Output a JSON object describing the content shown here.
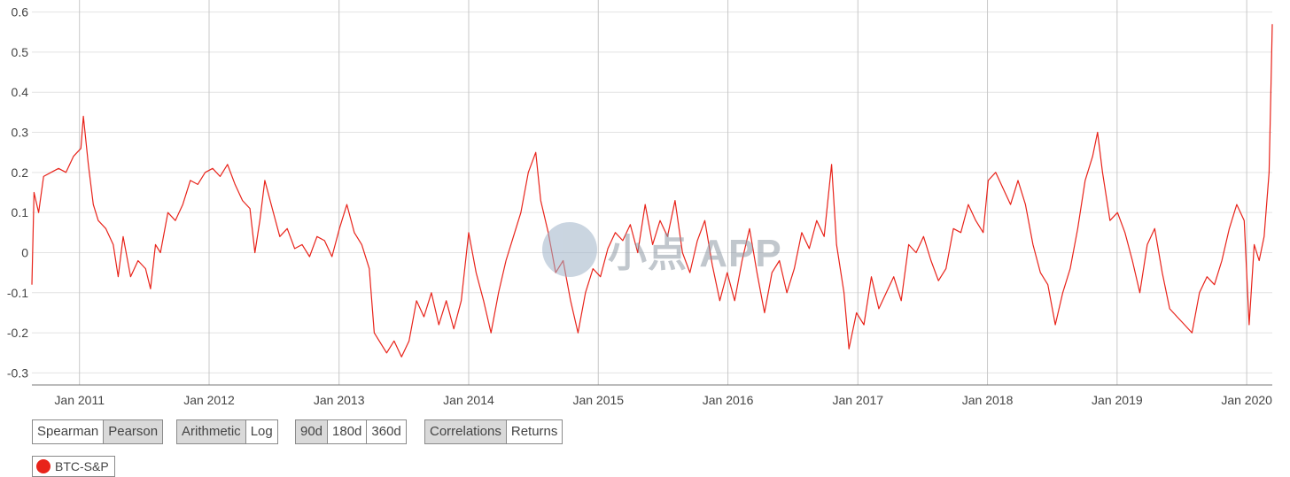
{
  "chart_data": {
    "type": "line",
    "ylim": [
      -0.33,
      0.63
    ],
    "yticks": [
      {
        "v": 0.6,
        "label": "0.6"
      },
      {
        "v": 0.5,
        "label": "0.5"
      },
      {
        "v": 0.4,
        "label": "0.4"
      },
      {
        "v": 0.3,
        "label": "0.3"
      },
      {
        "v": 0.2,
        "label": "0.2"
      },
      {
        "v": 0.1,
        "label": "0.1"
      },
      {
        "v": 0.0,
        "label": "0"
      },
      {
        "v": -0.1,
        "label": "-0.1"
      },
      {
        "v": -0.2,
        "label": "-0.2"
      },
      {
        "v": -0.3,
        "label": "-0.3"
      }
    ],
    "xlim": [
      "2010-08-20",
      "2020-03-13"
    ],
    "xticks": [
      {
        "date": "2011-01-01",
        "label": "Jan 2011"
      },
      {
        "date": "2012-01-01",
        "label": "Jan 2012"
      },
      {
        "date": "2013-01-01",
        "label": "Jan 2013"
      },
      {
        "date": "2014-01-01",
        "label": "Jan 2014"
      },
      {
        "date": "2015-01-01",
        "label": "Jan 2015"
      },
      {
        "date": "2016-01-01",
        "label": "Jan 2016"
      },
      {
        "date": "2017-01-01",
        "label": "Jan 2017"
      },
      {
        "date": "2018-01-01",
        "label": "Jan 2018"
      },
      {
        "date": "2019-01-01",
        "label": "Jan 2019"
      },
      {
        "date": "2020-01-01",
        "label": "Jan 2020"
      }
    ],
    "grid": true,
    "series": [
      {
        "name": "BTC-S&P",
        "color": "#e8231a",
        "points": [
          [
            "2010-08-20",
            -0.08
          ],
          [
            "2010-08-26",
            0.15
          ],
          [
            "2010-09-08",
            0.1
          ],
          [
            "2010-09-22",
            0.19
          ],
          [
            "2010-10-13",
            0.2
          ],
          [
            "2010-11-03",
            0.21
          ],
          [
            "2010-11-24",
            0.2
          ],
          [
            "2010-12-15",
            0.24
          ],
          [
            "2011-01-05",
            0.26
          ],
          [
            "2011-01-12",
            0.34
          ],
          [
            "2011-01-26",
            0.22
          ],
          [
            "2011-02-09",
            0.12
          ],
          [
            "2011-02-23",
            0.08
          ],
          [
            "2011-03-16",
            0.06
          ],
          [
            "2011-04-06",
            0.02
          ],
          [
            "2011-04-20",
            -0.06
          ],
          [
            "2011-05-04",
            0.04
          ],
          [
            "2011-05-25",
            -0.06
          ],
          [
            "2011-06-15",
            -0.02
          ],
          [
            "2011-07-06",
            -0.04
          ],
          [
            "2011-07-20",
            -0.09
          ],
          [
            "2011-08-03",
            0.02
          ],
          [
            "2011-08-17",
            0.0
          ],
          [
            "2011-09-07",
            0.1
          ],
          [
            "2011-09-28",
            0.08
          ],
          [
            "2011-10-19",
            0.12
          ],
          [
            "2011-11-09",
            0.18
          ],
          [
            "2011-11-30",
            0.17
          ],
          [
            "2011-12-21",
            0.2
          ],
          [
            "2012-01-11",
            0.21
          ],
          [
            "2012-02-01",
            0.19
          ],
          [
            "2012-02-22",
            0.22
          ],
          [
            "2012-03-14",
            0.17
          ],
          [
            "2012-04-04",
            0.13
          ],
          [
            "2012-04-25",
            0.11
          ],
          [
            "2012-05-09",
            -0.0
          ],
          [
            "2012-05-23",
            0.08
          ],
          [
            "2012-06-06",
            0.18
          ],
          [
            "2012-06-27",
            0.11
          ],
          [
            "2012-07-18",
            0.04
          ],
          [
            "2012-08-08",
            0.06
          ],
          [
            "2012-08-29",
            0.01
          ],
          [
            "2012-09-19",
            0.02
          ],
          [
            "2012-10-10",
            -0.01
          ],
          [
            "2012-10-31",
            0.04
          ],
          [
            "2012-11-21",
            0.03
          ],
          [
            "2012-12-12",
            -0.01
          ],
          [
            "2013-01-02",
            0.06
          ],
          [
            "2013-01-23",
            0.12
          ],
          [
            "2013-02-13",
            0.05
          ],
          [
            "2013-03-06",
            0.02
          ],
          [
            "2013-03-27",
            -0.04
          ],
          [
            "2013-04-10",
            -0.2
          ],
          [
            "2013-04-24",
            -0.22
          ],
          [
            "2013-05-15",
            -0.25
          ],
          [
            "2013-06-05",
            -0.22
          ],
          [
            "2013-06-26",
            -0.26
          ],
          [
            "2013-07-17",
            -0.22
          ],
          [
            "2013-08-07",
            -0.12
          ],
          [
            "2013-08-28",
            -0.16
          ],
          [
            "2013-09-18",
            -0.1
          ],
          [
            "2013-10-09",
            -0.18
          ],
          [
            "2013-10-30",
            -0.12
          ],
          [
            "2013-11-20",
            -0.19
          ],
          [
            "2013-12-11",
            -0.12
          ],
          [
            "2014-01-01",
            0.05
          ],
          [
            "2014-01-22",
            -0.05
          ],
          [
            "2014-02-12",
            -0.12
          ],
          [
            "2014-03-05",
            -0.2
          ],
          [
            "2014-03-26",
            -0.1
          ],
          [
            "2014-04-16",
            -0.02
          ],
          [
            "2014-05-07",
            0.04
          ],
          [
            "2014-05-28",
            0.1
          ],
          [
            "2014-06-18",
            0.2
          ],
          [
            "2014-07-09",
            0.25
          ],
          [
            "2014-07-23",
            0.13
          ],
          [
            "2014-08-13",
            0.05
          ],
          [
            "2014-09-03",
            -0.05
          ],
          [
            "2014-09-24",
            -0.02
          ],
          [
            "2014-10-15",
            -0.12
          ],
          [
            "2014-11-05",
            -0.2
          ],
          [
            "2014-11-26",
            -0.1
          ],
          [
            "2014-12-17",
            -0.04
          ],
          [
            "2015-01-07",
            -0.06
          ],
          [
            "2015-01-28",
            0.01
          ],
          [
            "2015-02-18",
            0.05
          ],
          [
            "2015-03-11",
            0.03
          ],
          [
            "2015-04-01",
            0.07
          ],
          [
            "2015-04-22",
            0.0
          ],
          [
            "2015-05-13",
            0.12
          ],
          [
            "2015-06-03",
            0.02
          ],
          [
            "2015-06-24",
            0.08
          ],
          [
            "2015-07-15",
            0.04
          ],
          [
            "2015-08-05",
            0.13
          ],
          [
            "2015-08-26",
            0.0
          ],
          [
            "2015-09-16",
            -0.05
          ],
          [
            "2015-10-07",
            0.03
          ],
          [
            "2015-10-28",
            0.08
          ],
          [
            "2015-11-18",
            -0.03
          ],
          [
            "2015-12-09",
            -0.12
          ],
          [
            "2015-12-30",
            -0.05
          ],
          [
            "2016-01-20",
            -0.12
          ],
          [
            "2016-02-10",
            -0.02
          ],
          [
            "2016-03-02",
            0.06
          ],
          [
            "2016-03-23",
            -0.05
          ],
          [
            "2016-04-13",
            -0.15
          ],
          [
            "2016-05-04",
            -0.05
          ],
          [
            "2016-05-25",
            -0.02
          ],
          [
            "2016-06-15",
            -0.1
          ],
          [
            "2016-07-06",
            -0.04
          ],
          [
            "2016-07-27",
            0.05
          ],
          [
            "2016-08-17",
            0.01
          ],
          [
            "2016-09-07",
            0.08
          ],
          [
            "2016-09-28",
            0.04
          ],
          [
            "2016-10-19",
            0.22
          ],
          [
            "2016-11-02",
            0.02
          ],
          [
            "2016-11-23",
            -0.1
          ],
          [
            "2016-12-07",
            -0.24
          ],
          [
            "2016-12-28",
            -0.15
          ],
          [
            "2017-01-18",
            -0.18
          ],
          [
            "2017-02-08",
            -0.06
          ],
          [
            "2017-03-01",
            -0.14
          ],
          [
            "2017-03-22",
            -0.1
          ],
          [
            "2017-04-12",
            -0.06
          ],
          [
            "2017-05-03",
            -0.12
          ],
          [
            "2017-05-24",
            0.02
          ],
          [
            "2017-06-14",
            0.0
          ],
          [
            "2017-07-05",
            0.04
          ],
          [
            "2017-07-26",
            -0.02
          ],
          [
            "2017-08-16",
            -0.07
          ],
          [
            "2017-09-06",
            -0.04
          ],
          [
            "2017-09-27",
            0.06
          ],
          [
            "2017-10-18",
            0.05
          ],
          [
            "2017-11-08",
            0.12
          ],
          [
            "2017-11-29",
            0.08
          ],
          [
            "2017-12-20",
            0.05
          ],
          [
            "2018-01-03",
            0.18
          ],
          [
            "2018-01-24",
            0.2
          ],
          [
            "2018-02-14",
            0.16
          ],
          [
            "2018-03-07",
            0.12
          ],
          [
            "2018-03-28",
            0.18
          ],
          [
            "2018-04-18",
            0.12
          ],
          [
            "2018-05-09",
            0.02
          ],
          [
            "2018-05-30",
            -0.05
          ],
          [
            "2018-06-20",
            -0.08
          ],
          [
            "2018-07-11",
            -0.18
          ],
          [
            "2018-08-01",
            -0.1
          ],
          [
            "2018-08-22",
            -0.04
          ],
          [
            "2018-09-12",
            0.06
          ],
          [
            "2018-10-03",
            0.18
          ],
          [
            "2018-10-24",
            0.24
          ],
          [
            "2018-11-07",
            0.3
          ],
          [
            "2018-11-21",
            0.2
          ],
          [
            "2018-12-12",
            0.08
          ],
          [
            "2019-01-02",
            0.1
          ],
          [
            "2019-01-23",
            0.05
          ],
          [
            "2019-02-13",
            -0.02
          ],
          [
            "2019-03-06",
            -0.1
          ],
          [
            "2019-03-27",
            0.02
          ],
          [
            "2019-04-17",
            0.06
          ],
          [
            "2019-05-08",
            -0.05
          ],
          [
            "2019-05-29",
            -0.14
          ],
          [
            "2019-06-19",
            -0.16
          ],
          [
            "2019-07-10",
            -0.18
          ],
          [
            "2019-07-31",
            -0.2
          ],
          [
            "2019-08-21",
            -0.1
          ],
          [
            "2019-09-11",
            -0.06
          ],
          [
            "2019-10-02",
            -0.08
          ],
          [
            "2019-10-23",
            -0.02
          ],
          [
            "2019-11-13",
            0.06
          ],
          [
            "2019-12-04",
            0.12
          ],
          [
            "2019-12-25",
            0.08
          ],
          [
            "2020-01-08",
            -0.18
          ],
          [
            "2020-01-22",
            0.02
          ],
          [
            "2020-02-05",
            -0.02
          ],
          [
            "2020-02-19",
            0.04
          ],
          [
            "2020-02-26",
            0.12
          ],
          [
            "2020-03-04",
            0.2
          ],
          [
            "2020-03-09",
            0.4
          ],
          [
            "2020-03-13",
            0.57
          ]
        ]
      }
    ]
  },
  "controls": {
    "method": {
      "options": [
        "Spearman",
        "Pearson"
      ],
      "active": "Pearson"
    },
    "scale": {
      "options": [
        "Arithmetic",
        "Log"
      ],
      "active": "Arithmetic"
    },
    "window": {
      "options": [
        "90d",
        "180d",
        "360d"
      ],
      "active": "90d"
    },
    "mode": {
      "options": [
        "Correlations",
        "Returns"
      ],
      "active": "Correlations"
    }
  },
  "legend": {
    "label": "BTC-S&P",
    "color": "#e8231a"
  },
  "watermark": {
    "text": "小点 APP"
  }
}
